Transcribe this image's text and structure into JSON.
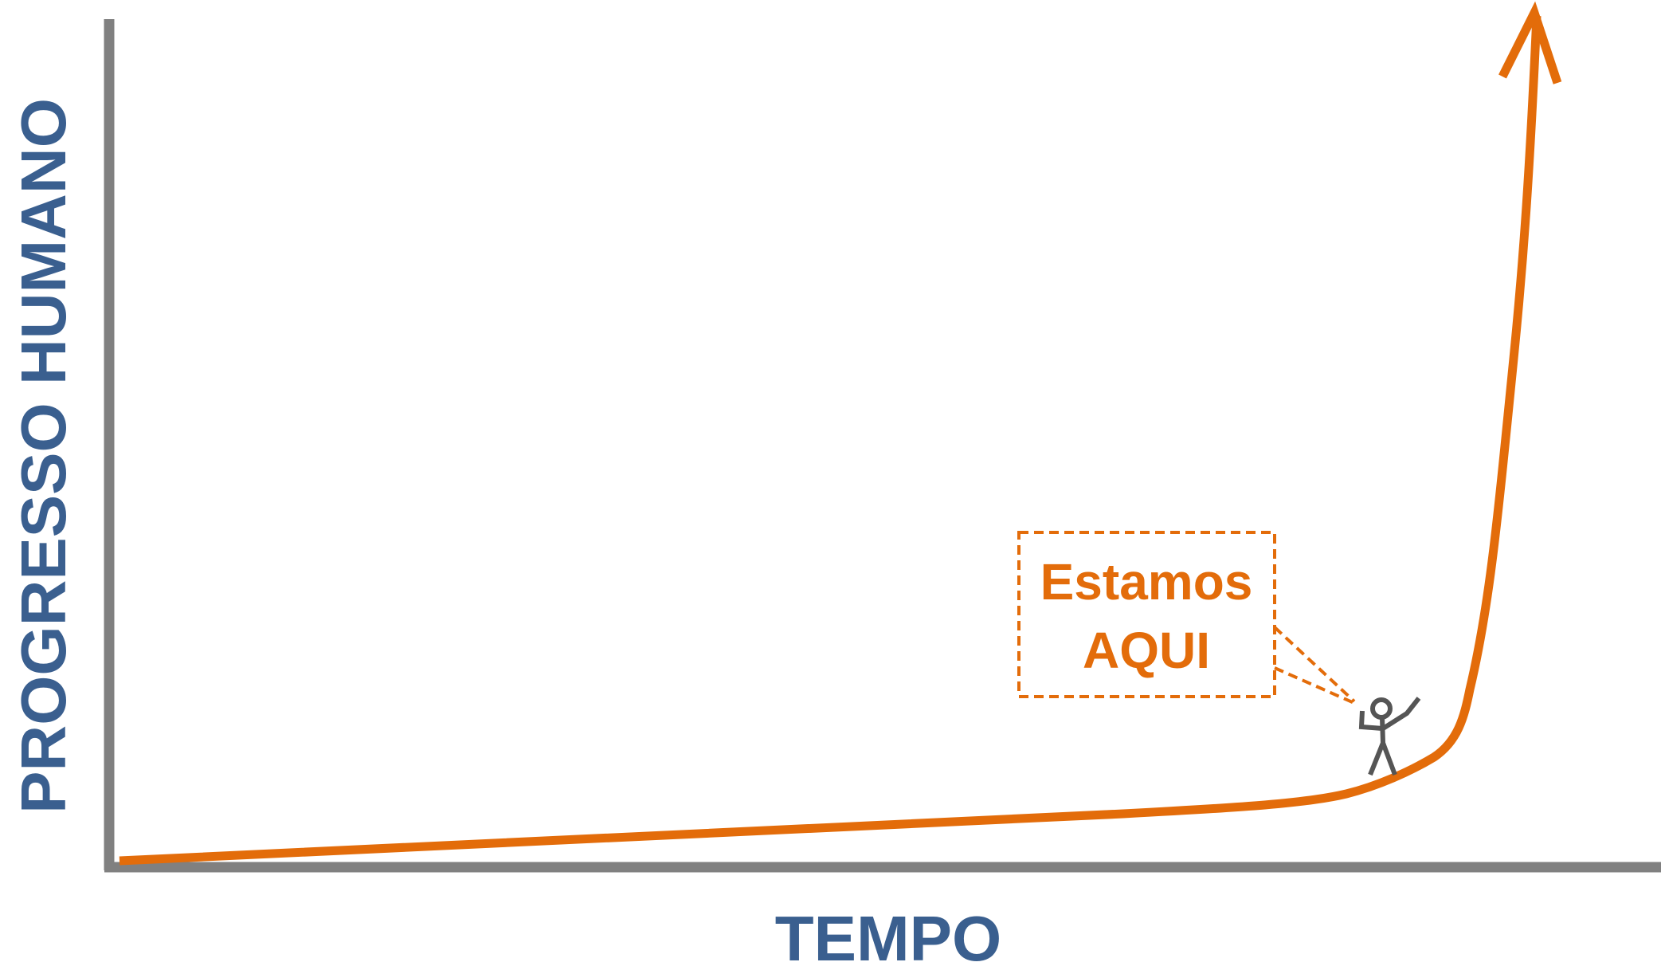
{
  "y_axis_label": "PROGRESSO HUMANO",
  "x_axis_label": "TEMPO",
  "callout": {
    "lines": [
      "Estamos",
      "AQUI"
    ]
  }
}
